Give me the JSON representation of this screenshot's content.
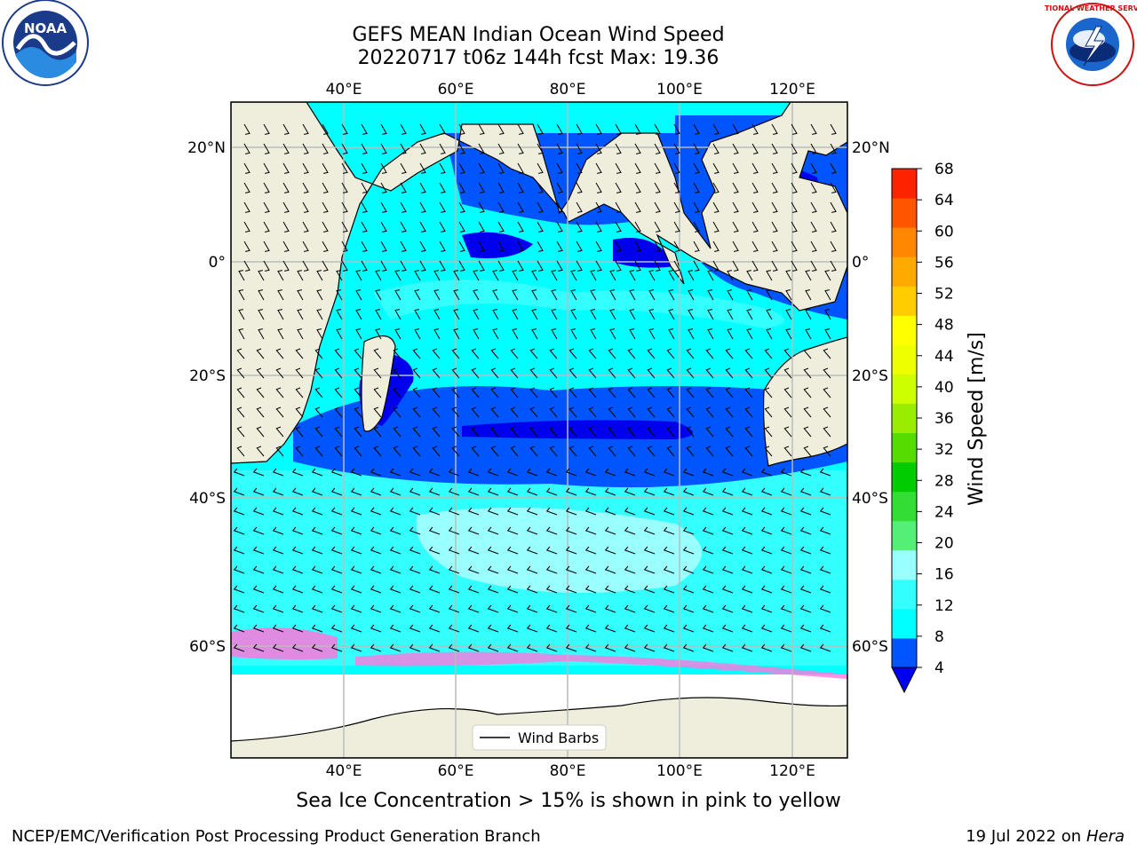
{
  "title_line1": "GEFS MEAN Indian Ocean Wind Speed",
  "title_line2": "20220717 t06z 144h fcst   Max: 19.36",
  "colorbar": {
    "label": "Wind Speed [m/s]",
    "ticks": [
      "4",
      "8",
      "12",
      "16",
      "20",
      "24",
      "28",
      "32",
      "36",
      "40",
      "44",
      "48",
      "52",
      "56",
      "60",
      "64",
      "68"
    ],
    "colors": [
      "#0055ff",
      "#00ffff",
      "#33ffff",
      "#99ffff",
      "#55ee77",
      "#33dd33",
      "#00cc00",
      "#55dd00",
      "#99ee00",
      "#ccff00",
      "#eeff00",
      "#ffff00",
      "#ffcc00",
      "#ffaa00",
      "#ff8800",
      "#ff5500",
      "#ff2200"
    ],
    "extend_color": "#0000ee"
  },
  "axes": {
    "lon_labels": [
      "40°E",
      "60°E",
      "80°E",
      "100°E",
      "120°E"
    ],
    "lat_labels_left": [
      "20°N",
      "0°",
      "20°S",
      "40°S",
      "60°S"
    ],
    "lat_labels_right": [
      "20°N",
      "0°",
      "20°S",
      "40°S",
      "60°S"
    ]
  },
  "legend": {
    "label": "Wind Barbs"
  },
  "sea_ice_note": "Sea Ice Concentration > 15% is shown in pink to yellow",
  "footer_left": "NCEP/EMC/Verification Post Processing Product Generation Branch",
  "footer_date": "19 Jul 2022 on ",
  "footer_host": "Hera",
  "logos": {
    "noaa_text": "NOAA",
    "nws_text": "NATIONAL WEATHER SERVICE"
  },
  "colors": {
    "land": "#efeedd",
    "ice": "#ffffff",
    "ice_edge": "#ff77dd",
    "grid": "#bbbbbb"
  }
}
